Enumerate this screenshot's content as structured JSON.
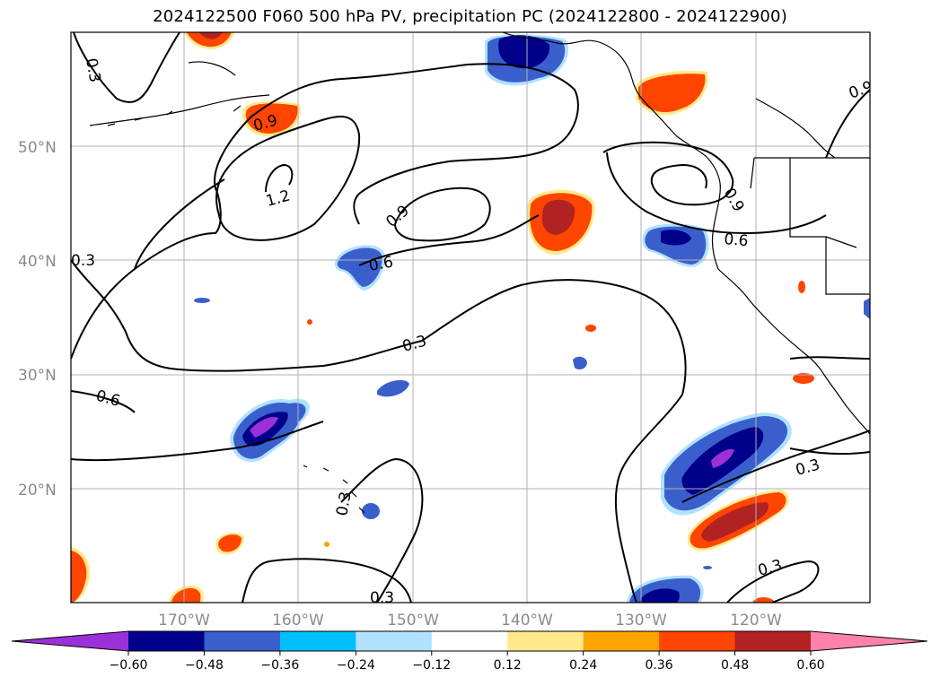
{
  "title": "2024122500 F060 500 hPa PV, precipitation PC (2024122800 - 2024122900)",
  "map": {
    "lat_labels": [
      "50°N",
      "40°N",
      "30°N",
      "20°N"
    ],
    "lon_labels": [
      "170°W",
      "160°W",
      "150°W",
      "140°W",
      "130°W",
      "120°W"
    ],
    "gridlines": true,
    "extent": {
      "lon_west": -180,
      "lon_east": -110,
      "lat_south": 10,
      "lat_north": 60
    }
  },
  "contours": {
    "variable": "500 hPa PV",
    "labels": [
      "0.3",
      "0.9",
      "1.2",
      "0.9",
      "0.6",
      "0.6",
      "0.3",
      "0.6",
      "0.3",
      "0.3",
      "0.3",
      "0.9",
      "0.3",
      "0.3",
      "0.9",
      "0.3"
    ]
  },
  "colorbar": {
    "variable": "precipitation PC",
    "ticks": [
      "−0.60",
      "−0.48",
      "−0.36",
      "−0.24",
      "−0.12",
      "0.12",
      "0.24",
      "0.36",
      "0.48",
      "0.60"
    ],
    "colors": [
      "#9b30d9",
      "#00008b",
      "#3a5fcd",
      "#00bfff",
      "#b0e2ff",
      "#ffffff",
      "#ffe98a",
      "#ffa500",
      "#ff4500",
      "#b22222",
      "#ff82ab"
    ],
    "extend": "both"
  }
}
